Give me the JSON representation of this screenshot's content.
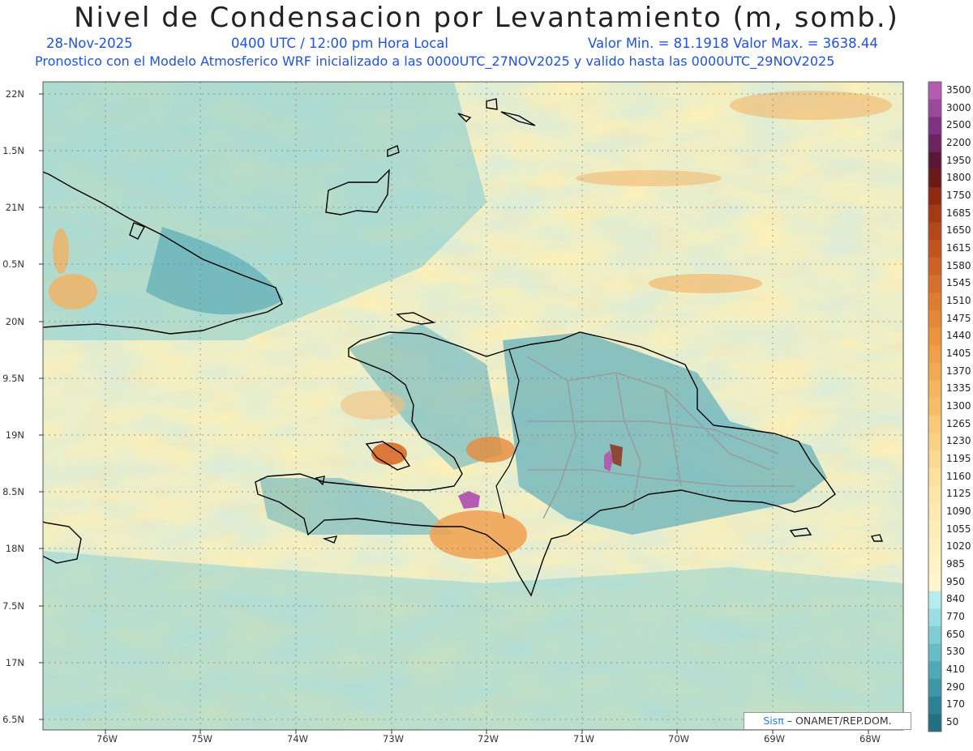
{
  "title": "Nivel de Condensacion por Levantamiento (m, somb.)",
  "date": "28-Nov-2025",
  "time": "0400 UTC / 12:00 pm Hora Local",
  "range": "Valor Min. = 81.1918  Valor Max. = 3638.44",
  "forecast_note": "Pronostico con el Modelo Atmosferico WRF inicializado a las 0000UTC_27NOV2025 y valido hasta las  0000UTC_29NOV2025",
  "credit_brand": "Sisπ",
  "credit_org": "– ONAMET/REP.DOM.",
  "lat_labels": [
    "22N",
    "1.5N",
    "21N",
    "0.5N",
    "20N",
    "9.5N",
    "19N",
    "8.5N",
    "18N",
    "7.5N",
    "17N",
    "6.5N"
  ],
  "lon_labels": [
    "76W",
    "75W",
    "74W",
    "73W",
    "72W",
    "71W",
    "70W",
    "69W",
    "68W"
  ],
  "colorbar": {
    "levels": [
      "3500",
      "3000",
      "2500",
      "2200",
      "1950",
      "1800",
      "1750",
      "1685",
      "1650",
      "1615",
      "1580",
      "1545",
      "1510",
      "1475",
      "1440",
      "1405",
      "1370",
      "1335",
      "1300",
      "1265",
      "1230",
      "1195",
      "1160",
      "1125",
      "1090",
      "1055",
      "1020",
      "985",
      "950",
      "840",
      "770",
      "650",
      "530",
      "410",
      "290",
      "170",
      "50"
    ],
    "colors": [
      "#b45cb4",
      "#9a4a9a",
      "#7e3380",
      "#6a2460",
      "#5a1838",
      "#6b1a1a",
      "#8c2a12",
      "#a33a14",
      "#b3461a",
      "#c05420",
      "#cc6226",
      "#d66f2c",
      "#de7c32",
      "#e48838",
      "#ea943e",
      "#ee9f48",
      "#f2aa52",
      "#f5b45e",
      "#f7be6a",
      "#f9c878",
      "#fbd186",
      "#fcd992",
      "#fde09e",
      "#fee5a8",
      "#fee9b0",
      "#feedb8",
      "#fff0c0",
      "#fff3c8",
      "#fff6d0",
      "#b6ecee",
      "#9adde3",
      "#80cdd6",
      "#67bcc8",
      "#51a9b8",
      "#3f96a8",
      "#2f8296",
      "#236f84"
    ]
  }
}
